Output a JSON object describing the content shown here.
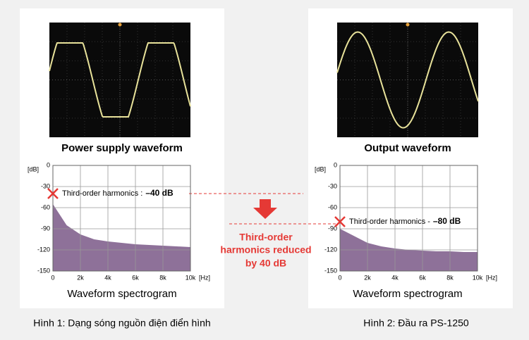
{
  "chart_data": [
    {
      "type": "area",
      "title": "Power supply waveform",
      "x_label": "Waveform spectrogram",
      "y_unit": "[dB]",
      "x_unit": "[Hz]",
      "x": [
        0,
        1000,
        2000,
        3000,
        4000,
        5000,
        6000,
        7000,
        8000,
        9000,
        10000
      ],
      "values": [
        -55,
        -85,
        -98,
        -105,
        -108,
        -110,
        -112,
        -113,
        -114,
        -115,
        -116
      ],
      "color": "#8e7199",
      "xlim": [
        0,
        10000
      ],
      "ylim": [
        -150,
        0
      ],
      "xticks": [
        0,
        {
          "value": 2000,
          "label": "2k"
        },
        {
          "value": 4000,
          "label": "4k"
        },
        {
          "value": 6000,
          "label": "6k"
        },
        {
          "value": 8000,
          "label": "8k"
        },
        {
          "value": 10000,
          "label": "10k"
        }
      ],
      "yticks": [
        0,
        -30,
        -60,
        -90,
        -120,
        -150
      ],
      "grid": true,
      "annotation": "Third-order harmonics :",
      "harmonic": {
        "value": -40,
        "label": "–40 dB"
      },
      "caption": "Hình 1: Dạng sóng nguồn điện điển hình"
    },
    {
      "type": "area",
      "title": "Output waveform",
      "x_label": "Waveform spectrogram",
      "y_unit": "[dB]",
      "x_unit": "[Hz]",
      "x": [
        0,
        1000,
        2000,
        3000,
        4000,
        5000,
        6000,
        7000,
        8000,
        9000,
        10000
      ],
      "values": [
        -90,
        -100,
        -110,
        -115,
        -118,
        -120,
        -121,
        -122,
        -122,
        -123,
        -123
      ],
      "color": "#8e7199",
      "xlim": [
        0,
        10000
      ],
      "ylim": [
        -150,
        0
      ],
      "xticks": [
        0,
        {
          "value": 2000,
          "label": "2k"
        },
        {
          "value": 4000,
          "label": "4k"
        },
        {
          "value": 6000,
          "label": "6k"
        },
        {
          "value": 8000,
          "label": "8k"
        },
        {
          "value": 10000,
          "label": "10k"
        }
      ],
      "yticks": [
        0,
        -30,
        -60,
        -90,
        -120,
        -150
      ],
      "grid": true,
      "annotation": "Third-order harmonics -",
      "harmonic": {
        "value": -80,
        "label": "–80 dB"
      },
      "caption": "Hình 2: Đầu ra PS-1250"
    }
  ],
  "middle_note": [
    "Third-order",
    "harmonics reduced",
    "by 40 dB"
  ]
}
